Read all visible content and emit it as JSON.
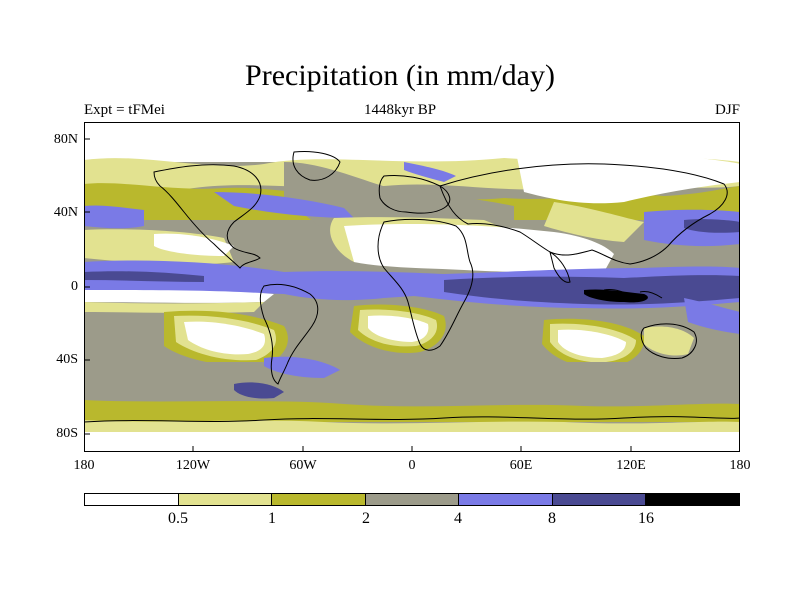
{
  "title": "Precipitation (in mm/day)",
  "subtitle_left": "Expt = tFMei",
  "subtitle_center": "1448kyr BP",
  "subtitle_right": "DJF",
  "lat_labels": [
    "80N",
    "40N",
    "0",
    "40S",
    "80S"
  ],
  "lon_labels": [
    "180",
    "120W",
    "60W",
    "0",
    "60E",
    "120E",
    "180"
  ],
  "colorbar": {
    "colors": [
      "#ffffff",
      "#e2e290",
      "#b9b82d",
      "#9c9b8a",
      "#7a7ae6",
      "#4a4a92",
      "#000000"
    ],
    "labels": [
      "0.5",
      "1",
      "2",
      "4",
      "8",
      "16"
    ]
  },
  "palette": {
    "white": "#ffffff",
    "light_yellow": "#e2e290",
    "olive": "#b9b82d",
    "gray": "#9c9b8a",
    "light_blue": "#7a7ae6",
    "dark_blue": "#4a4a92",
    "black": "#000000"
  }
}
